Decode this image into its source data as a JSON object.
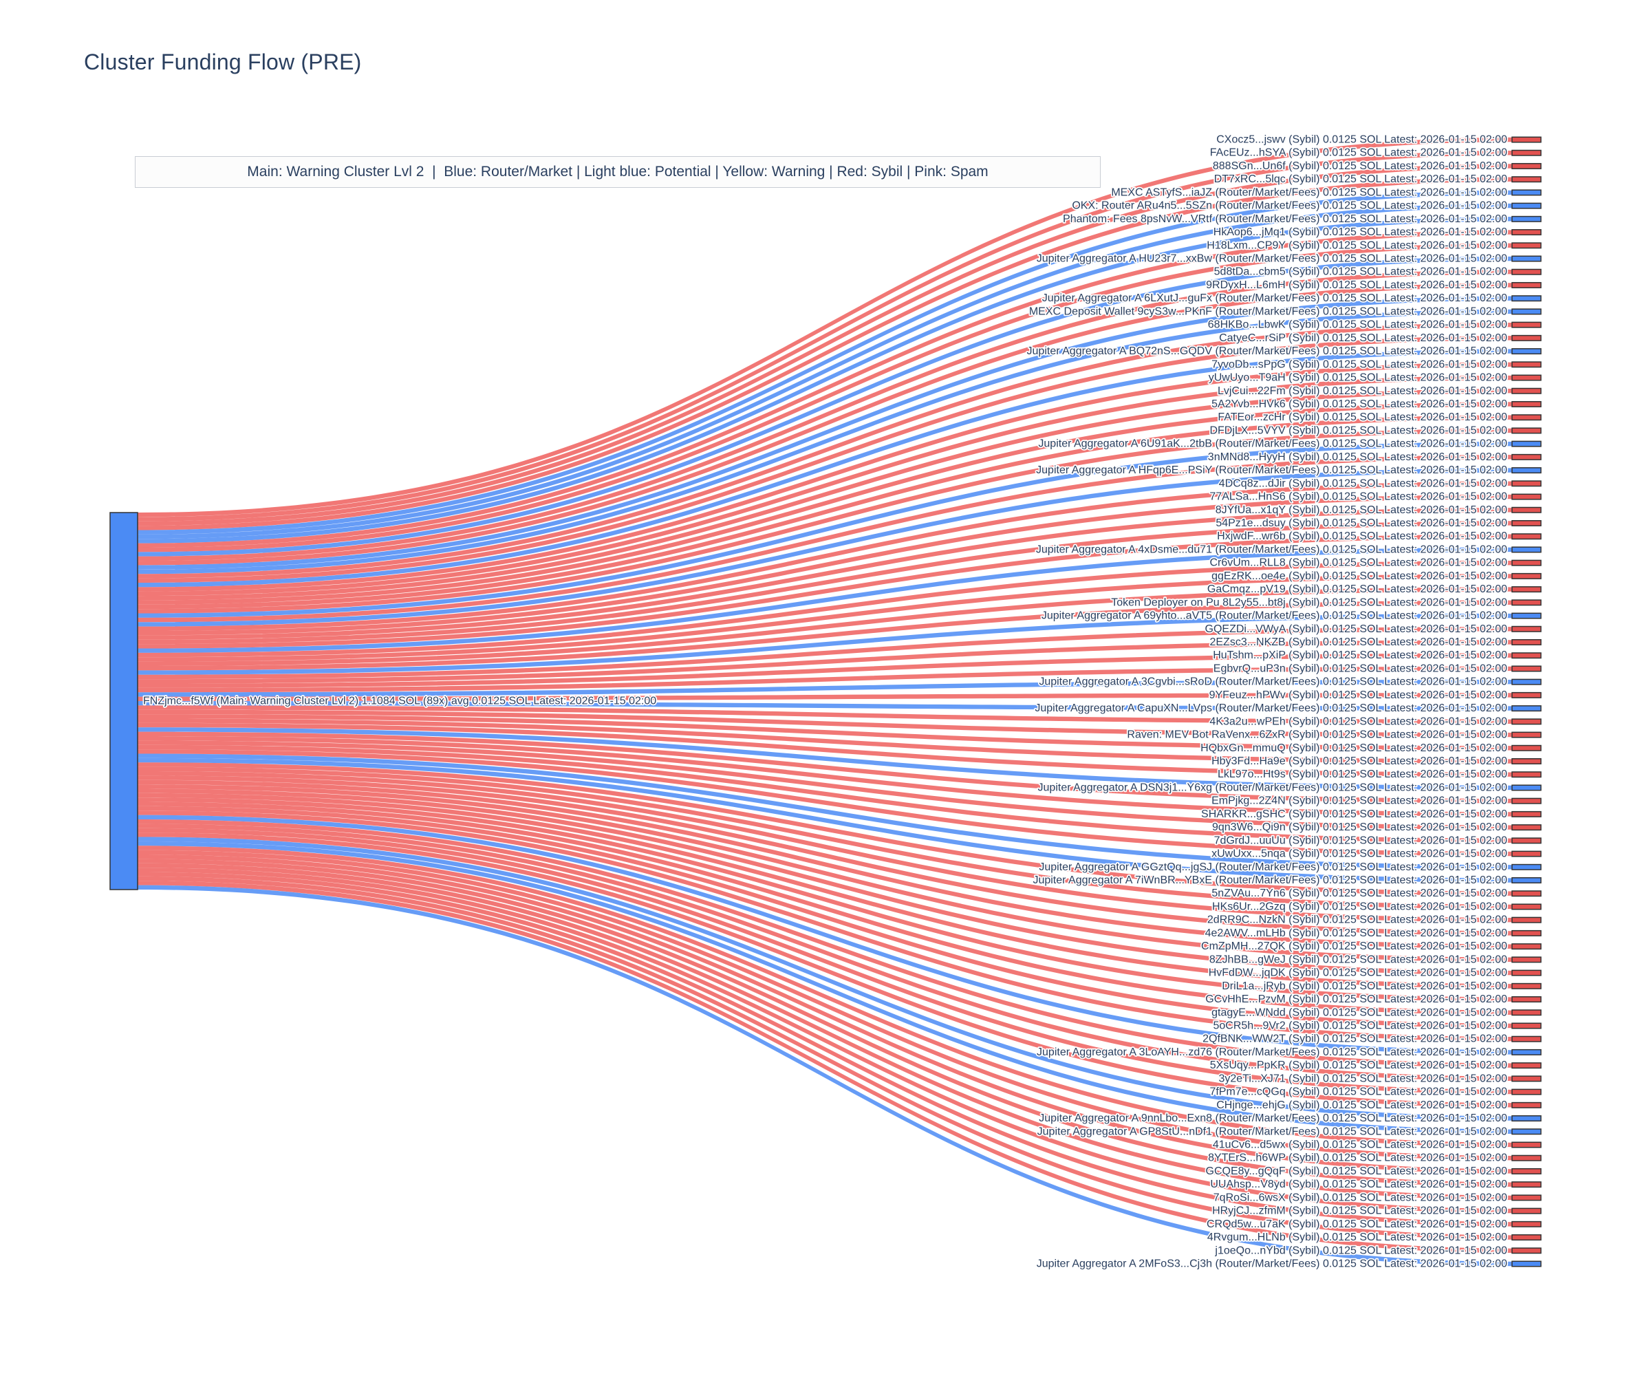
{
  "title": "Cluster Funding Flow (PRE)",
  "legend": {
    "text": "Main: Warning Cluster Lvl 2  |  Blue: Router/Market | Light blue: Potential | Yellow: Warning | Red: Sybil | Pink: Spam"
  },
  "colors": {
    "sybil_node": "#e25250",
    "sybil_link": "rgba(238,85,82,0.80)",
    "router_node": "#4b8bf4",
    "router_link": "rgba(75,139,244,0.85)",
    "node_border": "#333333",
    "label_text": "#2a3f5f"
  },
  "chart_data": {
    "type": "sankey",
    "title": "Cluster Funding Flow (PRE)",
    "orientation": "horizontal",
    "source_node": {
      "label": "FNZjmc...f5Wf (Main: Warning Cluster Lvl 2) 1.1084 SOL (89x) avg 0.0125 SOL Latest: 2026-01-15 02:00",
      "name": "FNZjmc...f5Wf",
      "category": "Main: Warning Cluster Lvl 2",
      "total_sol": "1.1084 SOL",
      "tx_count": "89x",
      "avg": "avg 0.0125 SOL",
      "latest": "Latest: 2026-01-15 02:00",
      "color": "router"
    },
    "link_amount_label": "0.0125 SOL",
    "latest_label": "Latest: 2026-01-15 02:00",
    "targets": [
      {
        "name": "CXocz5...jswv",
        "category": "Sybil",
        "color": "sybil"
      },
      {
        "name": "FAcEUz...hSYA",
        "category": "Sybil",
        "color": "sybil"
      },
      {
        "name": "888SGn...Un6f",
        "category": "Sybil",
        "color": "sybil"
      },
      {
        "name": "DT7xRC...5lqc",
        "category": "Sybil",
        "color": "sybil"
      },
      {
        "name": "MEXC ASTyfS...iaJZ",
        "category": "Router/Market/Fees",
        "color": "router"
      },
      {
        "name": "OKX: Router ARu4n5...5SZn",
        "category": "Router/Market/Fees",
        "color": "router"
      },
      {
        "name": "Phantom: Fees 8psNvW...VRtf",
        "category": "Router/Market/Fees",
        "color": "router"
      },
      {
        "name": "HkAop6...jMq1",
        "category": "Sybil",
        "color": "sybil"
      },
      {
        "name": "H18Lxm...CP9Y",
        "category": "Sybil",
        "color": "sybil"
      },
      {
        "name": "Jupiter Aggregator A HU23r7...xxBw",
        "category": "Router/Market/Fees",
        "color": "router"
      },
      {
        "name": "5d8tDa...cbm5",
        "category": "Sybil",
        "color": "sybil"
      },
      {
        "name": "9RDyxH...L6mH",
        "category": "Sybil",
        "color": "sybil"
      },
      {
        "name": "Jupiter Aggregator A 6LXutJ...guFx",
        "category": "Router/Market/Fees",
        "color": "router"
      },
      {
        "name": "MEXC Deposit Wallet 9cyS3w...PKnF",
        "category": "Router/Market/Fees",
        "color": "router"
      },
      {
        "name": "68HKBo...LbwK",
        "category": "Sybil",
        "color": "sybil"
      },
      {
        "name": "CatyeC...rSiP",
        "category": "Sybil",
        "color": "sybil"
      },
      {
        "name": "Jupiter Aggregator A BQ72nS...GQDV",
        "category": "Router/Market/Fees",
        "color": "router"
      },
      {
        "name": "7yvoDb...sPpG",
        "category": "Sybil",
        "color": "sybil"
      },
      {
        "name": "yUwUyo...T9aH",
        "category": "Sybil",
        "color": "sybil"
      },
      {
        "name": "LvjCui...22Fm",
        "category": "Sybil",
        "color": "sybil"
      },
      {
        "name": "5A2Yvb...HVk6",
        "category": "Sybil",
        "color": "sybil"
      },
      {
        "name": "FATEor...zcHr",
        "category": "Sybil",
        "color": "sybil"
      },
      {
        "name": "DFDjLX...5VYV",
        "category": "Sybil",
        "color": "sybil"
      },
      {
        "name": "Jupiter Aggregator A 6U91aK...2tbB",
        "category": "Router/Market/Fees",
        "color": "router"
      },
      {
        "name": "3nMNd8...HyyH",
        "category": "Sybil",
        "color": "sybil"
      },
      {
        "name": "Jupiter Aggregator A HFqp6E...PSiY",
        "category": "Router/Market/Fees",
        "color": "router"
      },
      {
        "name": "4DCq8z...dJir",
        "category": "Sybil",
        "color": "sybil"
      },
      {
        "name": "77ALSa...HnS6",
        "category": "Sybil",
        "color": "sybil"
      },
      {
        "name": "8JYfUa...x1qY",
        "category": "Sybil",
        "color": "sybil"
      },
      {
        "name": "54Pz1e...dsuy",
        "category": "Sybil",
        "color": "sybil"
      },
      {
        "name": "HxjwdF...wr6b",
        "category": "Sybil",
        "color": "sybil"
      },
      {
        "name": "Jupiter Aggregator A 4xDsme...du71",
        "category": "Router/Market/Fees",
        "color": "router"
      },
      {
        "name": "Cr6vUm...RLL8",
        "category": "Sybil",
        "color": "sybil"
      },
      {
        "name": "ggEzRK...oe4e",
        "category": "Sybil",
        "color": "sybil"
      },
      {
        "name": "GaCmqz...pV19",
        "category": "Sybil",
        "color": "sybil"
      },
      {
        "name": "Token Deployer on Pu 8L2y55...bt8j",
        "category": "Sybil",
        "color": "sybil"
      },
      {
        "name": "Jupiter Aggregator A 69yhto...aVT5",
        "category": "Router/Market/Fees",
        "color": "router"
      },
      {
        "name": "GQEZDi...VWyA",
        "category": "Sybil",
        "color": "sybil"
      },
      {
        "name": "2EZsc3...NKZB",
        "category": "Sybil",
        "color": "sybil"
      },
      {
        "name": "HuTshm...pXiP",
        "category": "Sybil",
        "color": "sybil"
      },
      {
        "name": "EgbvrQ...uP3n",
        "category": "Sybil",
        "color": "sybil"
      },
      {
        "name": "Jupiter Aggregator A 3Cgvbi...sRoD",
        "category": "Router/Market/Fees",
        "color": "router"
      },
      {
        "name": "9YFeuz...hPWv",
        "category": "Sybil",
        "color": "sybil"
      },
      {
        "name": "Jupiter Aggregator A CapuXN...LVps",
        "category": "Router/Market/Fees",
        "color": "router"
      },
      {
        "name": "4K3a2u...wPEh",
        "category": "Sybil",
        "color": "sybil"
      },
      {
        "name": "Raven: MEV Bot RaVenx...6ZxR",
        "category": "Sybil",
        "color": "sybil"
      },
      {
        "name": "HQbxGn...mmuQ",
        "category": "Sybil",
        "color": "sybil"
      },
      {
        "name": "Hby3Fd...Ha9e",
        "category": "Sybil",
        "color": "sybil"
      },
      {
        "name": "LkL97o...Ht9s",
        "category": "Sybil",
        "color": "sybil"
      },
      {
        "name": "Jupiter Aggregator A DSN3j1...Y6xg",
        "category": "Router/Market/Fees",
        "color": "router"
      },
      {
        "name": "EmPjkg...2Z4N",
        "category": "Sybil",
        "color": "sybil"
      },
      {
        "name": "SHARKR...gSHC",
        "category": "Sybil",
        "color": "sybil"
      },
      {
        "name": "9qn3W6...Qi9n",
        "category": "Sybil",
        "color": "sybil"
      },
      {
        "name": "7dGrdJ...uuUu",
        "category": "Sybil",
        "color": "sybil"
      },
      {
        "name": "xUwUxx...5nqa",
        "category": "Sybil",
        "color": "sybil"
      },
      {
        "name": "Jupiter Aggregator A GGztQq...jgSJ",
        "category": "Router/Market/Fees",
        "color": "router"
      },
      {
        "name": "Jupiter Aggregator A 7iWnBR...YBxE",
        "category": "Router/Market/Fees",
        "color": "router"
      },
      {
        "name": "5nZVAu...7Yn6",
        "category": "Sybil",
        "color": "sybil"
      },
      {
        "name": "HKs6Ur...2Gzq",
        "category": "Sybil",
        "color": "sybil"
      },
      {
        "name": "2dRR9C...NzkN",
        "category": "Sybil",
        "color": "sybil"
      },
      {
        "name": "4e2AWV...mLHb",
        "category": "Sybil",
        "color": "sybil"
      },
      {
        "name": "CmZpMH...27QK",
        "category": "Sybil",
        "color": "sybil"
      },
      {
        "name": "8ZJhBB...gWeJ",
        "category": "Sybil",
        "color": "sybil"
      },
      {
        "name": "HvFdDW...jqDK",
        "category": "Sybil",
        "color": "sybil"
      },
      {
        "name": "DriL1a...jRyb",
        "category": "Sybil",
        "color": "sybil"
      },
      {
        "name": "GCvHhE...PzvM",
        "category": "Sybil",
        "color": "sybil"
      },
      {
        "name": "gtagyE...WNdd",
        "category": "Sybil",
        "color": "sybil"
      },
      {
        "name": "5oCR5h...9Vr2",
        "category": "Sybil",
        "color": "sybil"
      },
      {
        "name": "2QfBNK...WW2T",
        "category": "Sybil",
        "color": "sybil"
      },
      {
        "name": "Jupiter Aggregator A 3LoAYH...zd76",
        "category": "Router/Market/Fees",
        "color": "router"
      },
      {
        "name": "5XsUqy...PpKR",
        "category": "Sybil",
        "color": "sybil"
      },
      {
        "name": "3y2eTi...XJ71",
        "category": "Sybil",
        "color": "sybil"
      },
      {
        "name": "7fPm7e...cQGq",
        "category": "Sybil",
        "color": "sybil"
      },
      {
        "name": "CHjnge...ehjG",
        "category": "Sybil",
        "color": "sybil"
      },
      {
        "name": "Jupiter Aggregator A 9nnLbo...Exn8",
        "category": "Router/Market/Fees",
        "color": "router"
      },
      {
        "name": "Jupiter Aggregator A GP8StU...nDf1",
        "category": "Router/Market/Fees",
        "color": "router"
      },
      {
        "name": "41uCv6...d5wx",
        "category": "Sybil",
        "color": "sybil"
      },
      {
        "name": "8YTErS...h6WP",
        "category": "Sybil",
        "color": "sybil"
      },
      {
        "name": "GCQE8y...gQqF",
        "category": "Sybil",
        "color": "sybil"
      },
      {
        "name": "UUAhsp...V8yd",
        "category": "Sybil",
        "color": "sybil"
      },
      {
        "name": "7qRoSi...6wsX",
        "category": "Sybil",
        "color": "sybil"
      },
      {
        "name": "HRyjCJ...zfmM",
        "category": "Sybil",
        "color": "sybil"
      },
      {
        "name": "CRQd5w...u7aK",
        "category": "Sybil",
        "color": "sybil"
      },
      {
        "name": "4Rvgum...HLNb",
        "category": "Sybil",
        "color": "sybil"
      },
      {
        "name": "j1oeQo...nYbd",
        "category": "Sybil",
        "color": "sybil"
      },
      {
        "name": "Jupiter Aggregator A 2MFoS3...Cj3h",
        "category": "Router/Market/Fees",
        "color": "router"
      }
    ]
  }
}
